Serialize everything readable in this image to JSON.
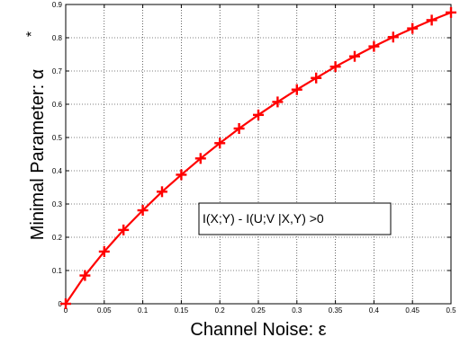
{
  "chart_data": {
    "type": "line",
    "xlabel": "Channel Noise: ε",
    "ylabel": "Minimal Parameter: α",
    "ylabel_superscript": "*",
    "xlim": [
      0,
      0.5
    ],
    "ylim": [
      0,
      0.9
    ],
    "xticks": [
      "0",
      "0.05",
      "0.1",
      "0.15",
      "0.2",
      "0.25",
      "0.3",
      "0.35",
      "0.4",
      "0.45",
      "0.5"
    ],
    "yticks": [
      "0",
      "0.1",
      "0.2",
      "0.3",
      "0.4",
      "0.5",
      "0.6",
      "0.7",
      "0.8",
      "0.9"
    ],
    "grid": true,
    "series": [
      {
        "color": "#ff0000",
        "marker": "plus",
        "x": [
          0,
          0.025,
          0.05,
          0.075,
          0.1,
          0.125,
          0.15,
          0.175,
          0.2,
          0.225,
          0.25,
          0.275,
          0.3,
          0.325,
          0.35,
          0.375,
          0.4,
          0.425,
          0.45,
          0.475,
          0.5
        ],
        "y": [
          0.0,
          0.085,
          0.157,
          0.222,
          0.281,
          0.337,
          0.388,
          0.437,
          0.483,
          0.527,
          0.568,
          0.607,
          0.644,
          0.679,
          0.713,
          0.744,
          0.774,
          0.802,
          0.828,
          0.853,
          0.876
        ]
      }
    ],
    "annotation": "I(X;Y) - I(U;V |X,Y) >0"
  }
}
